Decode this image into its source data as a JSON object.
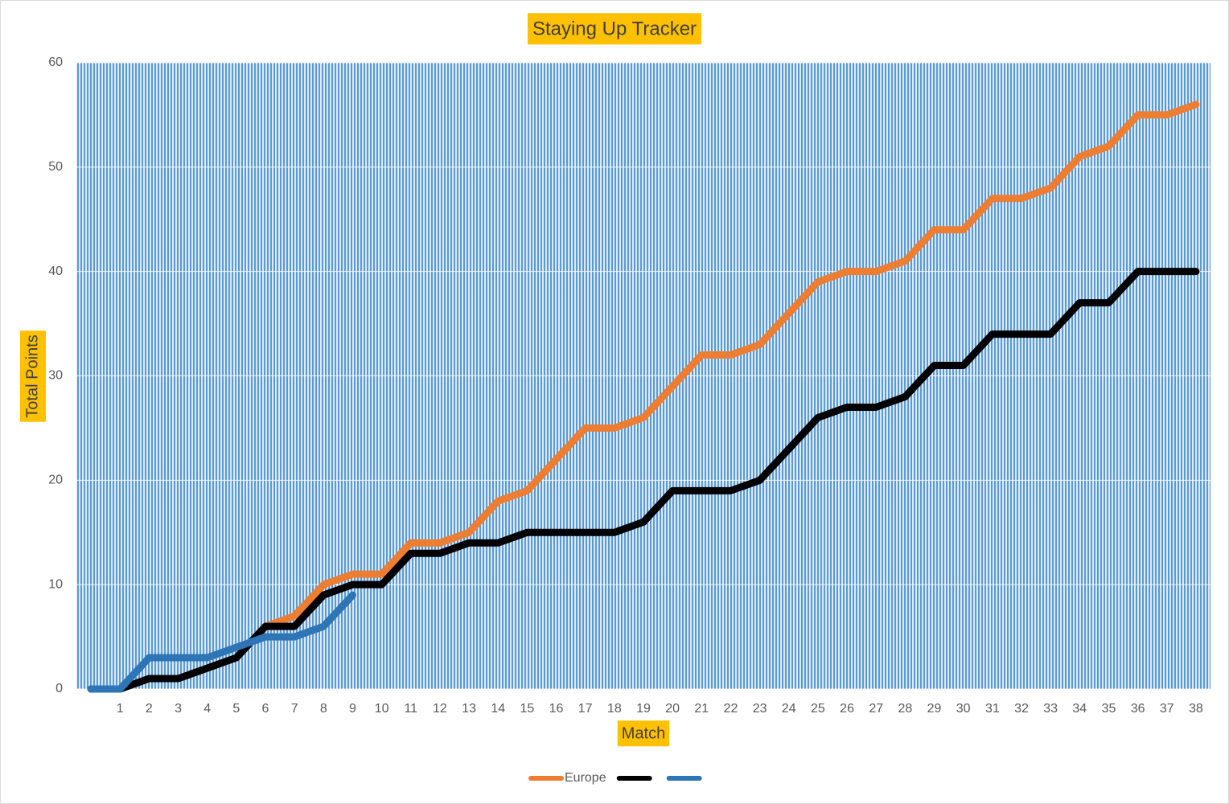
{
  "chart_data": {
    "type": "line",
    "title": "Staying Up Tracker",
    "x_label": "Match",
    "y_label": "Total Points",
    "categories": [
      null,
      "1",
      "2",
      "3",
      "4",
      "5",
      "6",
      "7",
      "8",
      "9",
      "10",
      "11",
      "12",
      "13",
      "14",
      "15",
      "16",
      "17",
      "18",
      "19",
      "20",
      "21",
      "22",
      "23",
      "24",
      "25",
      "26",
      "27",
      "28",
      "29",
      "30",
      "31",
      "32",
      "33",
      "34",
      "35",
      "36",
      "37",
      "38"
    ],
    "series": [
      {
        "name": "Europe",
        "color": "#ed7d31",
        "values": [
          0,
          0,
          1,
          1,
          2,
          3,
          6,
          7,
          10,
          11,
          11,
          14,
          14,
          15,
          18,
          19,
          22,
          25,
          25,
          26,
          29,
          32,
          32,
          33,
          36,
          39,
          40,
          40,
          41,
          44,
          44,
          47,
          47,
          48,
          51,
          52,
          55,
          55,
          56
        ]
      },
      {
        "color": "#000000",
        "values": [
          0,
          0,
          1,
          1,
          2,
          3,
          6,
          6,
          9,
          10,
          10,
          13,
          13,
          14,
          14,
          15,
          15,
          15,
          15,
          16,
          19,
          19,
          19,
          20,
          23,
          26,
          27,
          27,
          28,
          31,
          31,
          34,
          34,
          34,
          37,
          37,
          40,
          40,
          40
        ]
      },
      {
        "color": "#2e75b6",
        "values": [
          0,
          0,
          3,
          3,
          3,
          4,
          5,
          5,
          6,
          9,
          null,
          null,
          null,
          null,
          null,
          null,
          null,
          null,
          null,
          null,
          null,
          null,
          null,
          null,
          null,
          null,
          null,
          null,
          null,
          null,
          null,
          null,
          null,
          null,
          null,
          null,
          null,
          null,
          null
        ]
      }
    ],
    "ylim": [
      0,
      60
    ],
    "yticks": [
      0,
      10,
      20,
      30,
      40,
      50,
      60
    ],
    "grid": true,
    "legend": "bottom"
  }
}
